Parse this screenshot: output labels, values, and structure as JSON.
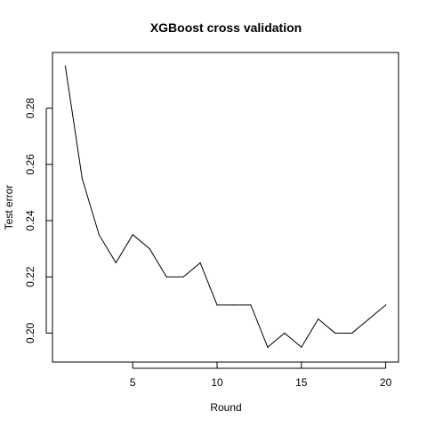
{
  "chart_data": {
    "type": "line",
    "title": "XGBoost cross validation",
    "xlabel": "Round",
    "ylabel": "Test error",
    "xlim": [
      0.24,
      20.76
    ],
    "ylim": [
      0.1897,
      0.2998
    ],
    "xticks": [
      5,
      10,
      15,
      20
    ],
    "yticks": [
      0.2,
      0.22,
      0.24,
      0.26,
      0.28
    ],
    "ytick_labels": [
      "0.20",
      "0.22",
      "0.24",
      "0.26",
      "0.28"
    ],
    "grid": false,
    "legend": false,
    "series": [
      {
        "color": "#000000",
        "x": [
          1,
          2,
          3,
          4,
          5,
          6,
          7,
          8,
          9,
          10,
          11,
          12,
          13,
          14,
          15,
          16,
          17,
          18,
          19,
          20
        ],
        "y": [
          0.295,
          0.255,
          0.235,
          0.225,
          0.235,
          0.23,
          0.22,
          0.22,
          0.225,
          0.21,
          0.21,
          0.21,
          0.195,
          0.2,
          0.195,
          0.205,
          0.2,
          0.2,
          0.205,
          0.21
        ]
      }
    ]
  }
}
